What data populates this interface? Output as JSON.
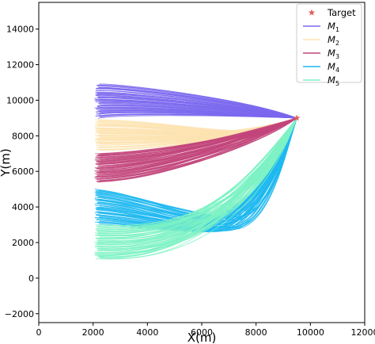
{
  "chart_data": {
    "type": "line",
    "xlabel": "X(m)",
    "ylabel": "Y(m)",
    "xlim": [
      0,
      12000
    ],
    "ylim": [
      -2500,
      15500
    ],
    "xticks": [
      "0",
      "2000",
      "4000",
      "6000",
      "8000",
      "10000",
      "12000"
    ],
    "xtick_values": [
      0,
      2000,
      4000,
      6000,
      8000,
      10000,
      12000
    ],
    "yticks": [
      "−2000",
      "0",
      "2000",
      "4000",
      "6000",
      "8000",
      "10000",
      "12000",
      "14000"
    ],
    "ytick_values": [
      -2000,
      0,
      2000,
      4000,
      6000,
      8000,
      10000,
      12000,
      14000
    ],
    "grid": false,
    "legend_position": "top-right",
    "target": {
      "label": "Target",
      "x": 9500,
      "y": 9000,
      "color": "#e06060"
    },
    "series": [
      {
        "name": "M",
        "subscript": "1",
        "color": "#7b68ee",
        "start_x": [
          2050,
          2250
        ],
        "start_y": [
          9000,
          10900
        ],
        "peak_x": [
          2500,
          3100
        ],
        "shape": "arch_high",
        "end_x": 9500,
        "end_y": 9000
      },
      {
        "name": "M",
        "subscript": "2",
        "color": "#fde3b0",
        "start_x": [
          2050,
          2250
        ],
        "start_y": [
          7200,
          8900
        ],
        "shape": "dip",
        "dip_x": [
          6500,
          7200
        ],
        "dip_y": [
          7700,
          8300
        ],
        "end_x": 9500,
        "end_y": 9000
      },
      {
        "name": "M",
        "subscript": "3",
        "color": "#c2457b",
        "start_x": [
          2050,
          2250
        ],
        "start_y": [
          5400,
          7000
        ],
        "shape": "rise",
        "end_x": 9500,
        "end_y": 9000
      },
      {
        "name": "M",
        "subscript": "4",
        "color": "#1eb8f0",
        "start_x": [
          2050,
          2250
        ],
        "start_y": [
          3100,
          5000
        ],
        "shape": "sag",
        "sag_x": [
          6000,
          7200
        ],
        "sag_y": [
          2600,
          3500
        ],
        "end_x": 9500,
        "end_y": 9000
      },
      {
        "name": "M",
        "subscript": "5",
        "color": "#7ef2c4",
        "start_x": [
          2050,
          2250
        ],
        "start_y": [
          1100,
          3000
        ],
        "shape": "late_rise",
        "end_x": 9500,
        "end_y": 9000
      }
    ]
  }
}
